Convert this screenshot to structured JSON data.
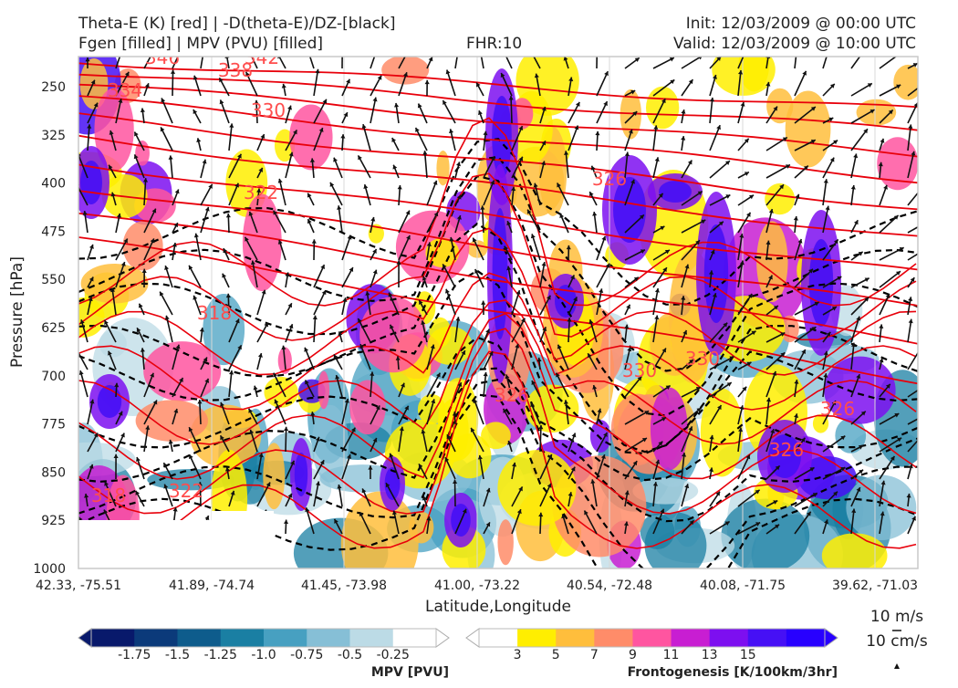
{
  "title": {
    "left_line1": "Theta-E (K) [red] | -D(theta-E)/DZ-[black]",
    "left_line2": "Fgen [filled] | MPV (PVU) [filled]",
    "center": "FHR:10",
    "right_line1": "Init: 12/03/2009 @ 00:00 UTC",
    "right_line2": "Valid: 12/03/2009 @ 10:00 UTC"
  },
  "chart_data": {
    "type": "cross-section",
    "xlabel": "Latitude,Longitude",
    "ylabel": "Pressure [hPa]",
    "ylim": [
      1000,
      212
    ],
    "x_ticks": [
      "42.33, -75.51",
      "41.89, -74.74",
      "41.45, -73.98",
      "41.00, -73.22",
      "40.54, -72.48",
      "40.08, -71.75",
      "39.62, -71.03"
    ],
    "y_ticks": [
      250,
      325,
      400,
      475,
      550,
      625,
      700,
      775,
      850,
      925,
      1000
    ],
    "theta_e_labels": [
      "346",
      "338",
      "342",
      "334",
      "330",
      "326",
      "322",
      "318",
      "326",
      "330",
      "326",
      "318",
      "322",
      "326",
      "330"
    ],
    "mpv_colorbar": {
      "label": "MPV [PVU]",
      "ticks": [
        "-1.75",
        "-1.5",
        "-1.25",
        "-1.0",
        "-0.75",
        "-0.5",
        "-0.25"
      ],
      "colors": [
        "#08196b",
        "#0b3a7a",
        "#0e5c8c",
        "#1a7fa3",
        "#47a0c1",
        "#86bfd6",
        "#bcdbe6",
        "#ffffff"
      ]
    },
    "fgen_colorbar": {
      "label": "Frontogenesis [K/100km/3hr]",
      "ticks": [
        "3",
        "5",
        "7",
        "9",
        "11",
        "13",
        "15"
      ],
      "colors": [
        "#ffffff",
        "#ffee00",
        "#ffbe3c",
        "#ff8c69",
        "#ff55a0",
        "#c81ed2",
        "#7d0ff0",
        "#4610f5",
        "#2800ff"
      ]
    },
    "wind_key": {
      "horizontal": "10 m/s",
      "vertical": "10 cm/s"
    }
  }
}
